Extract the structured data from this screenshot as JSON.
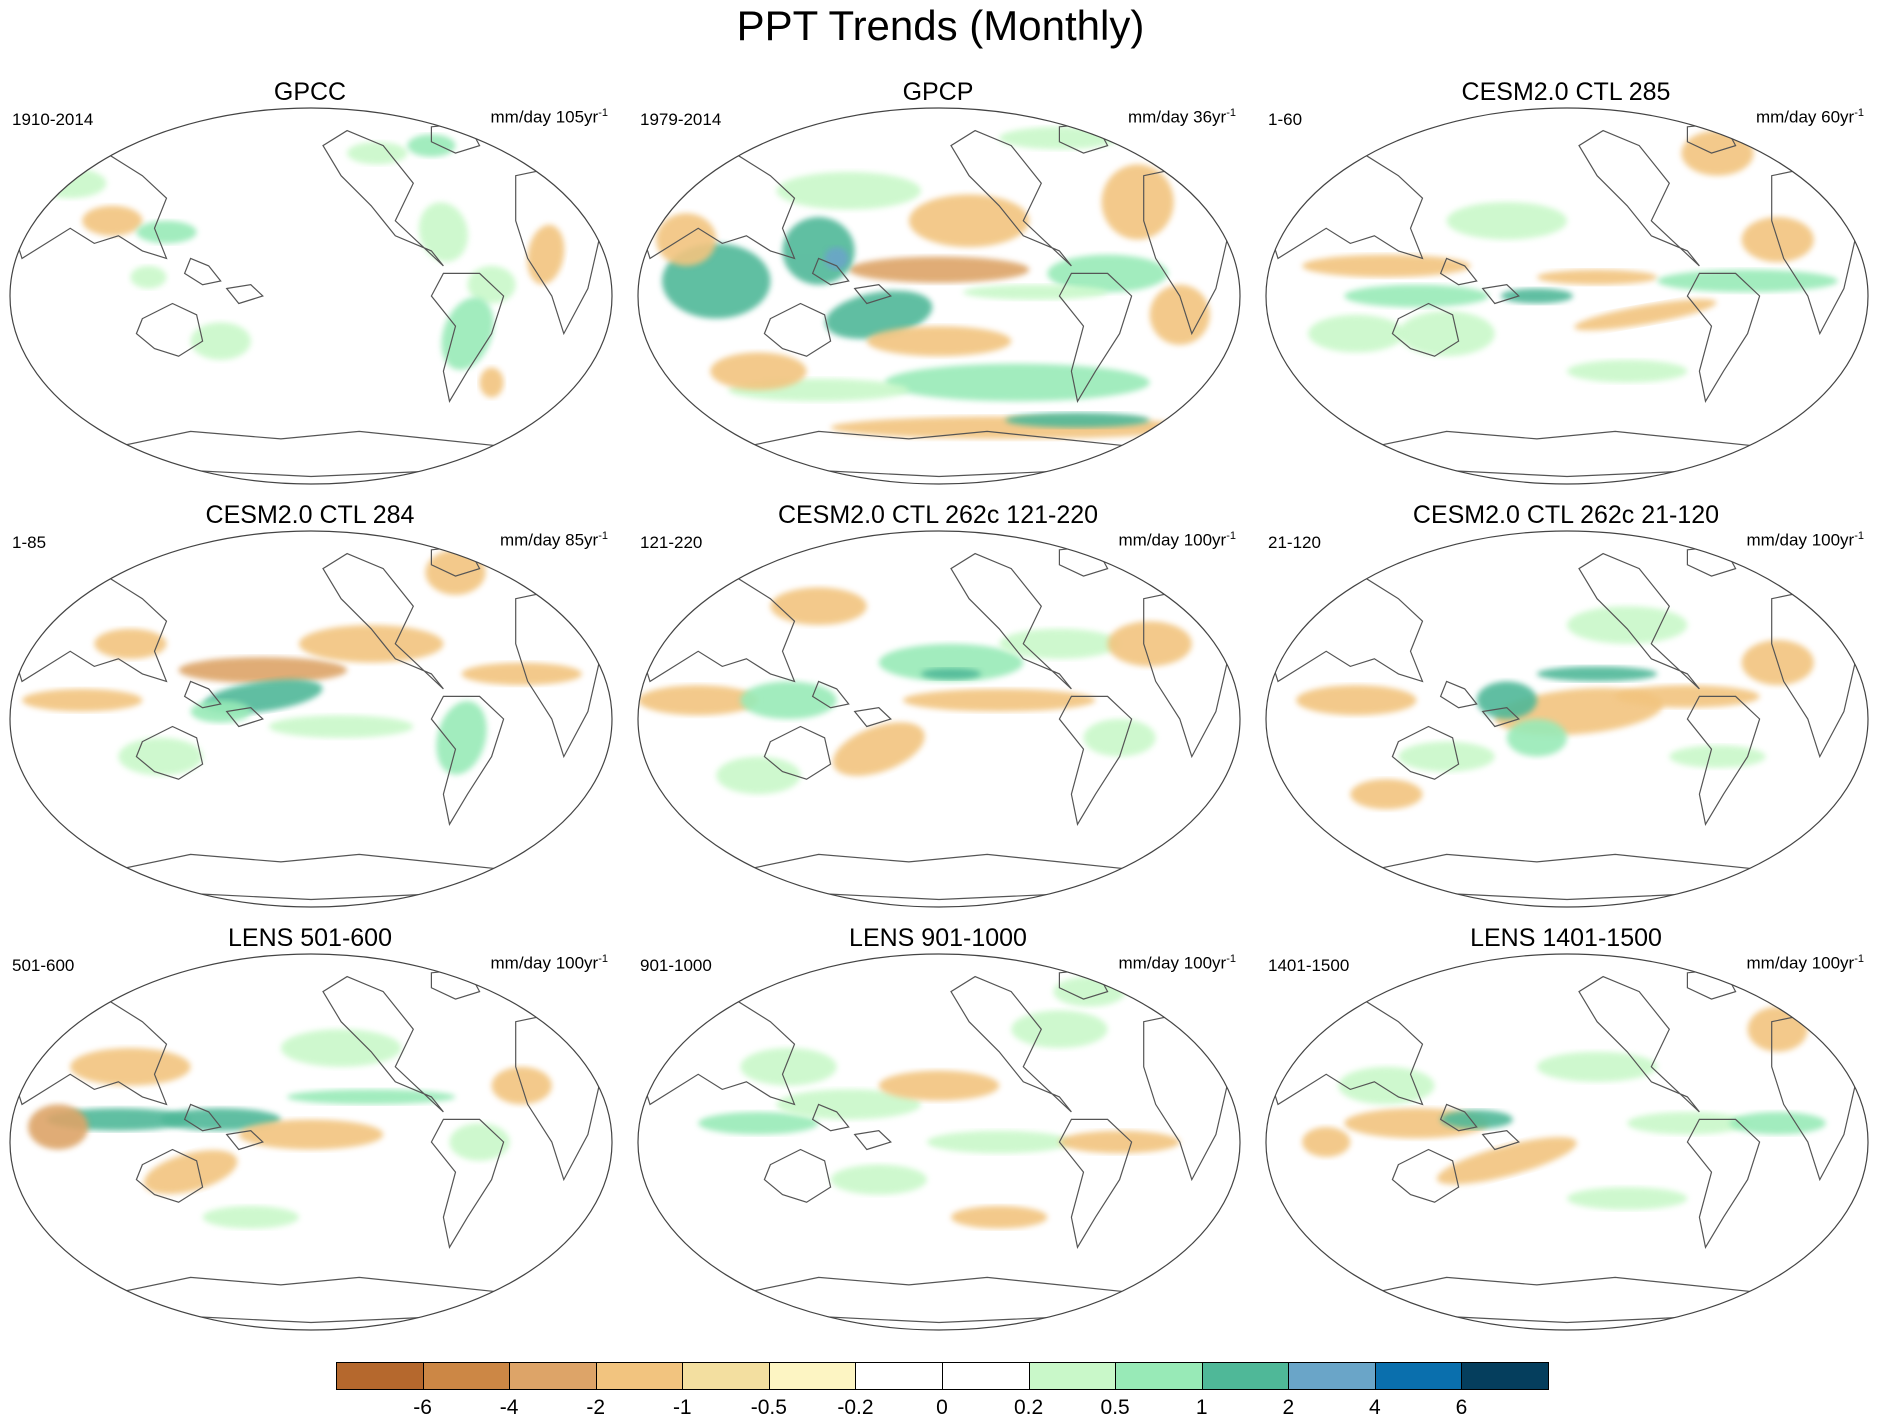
{
  "title": "PPT Trends (Monthly)",
  "panels": [
    {
      "title": "GPCC",
      "period": "1910-2014",
      "units": "mm/day 105yr",
      "units_exp": "-1",
      "pattern": "gpcc"
    },
    {
      "title": "GPCP",
      "period": "1979-2014",
      "units": "mm/day 36yr",
      "units_exp": "-1",
      "pattern": "gpcp"
    },
    {
      "title": "CESM2.0 CTL 285",
      "period": "1-60",
      "units": "mm/day 60yr",
      "units_exp": "-1",
      "pattern": "model1"
    },
    {
      "title": "CESM2.0 CTL 284",
      "period": "1-85",
      "units": "mm/day 85yr",
      "units_exp": "-1",
      "pattern": "model2"
    },
    {
      "title": "CESM2.0 CTL 262c 121-220",
      "period": "121-220",
      "units": "mm/day 100yr",
      "units_exp": "-1",
      "pattern": "model3"
    },
    {
      "title": "CESM2.0 CTL 262c 21-120",
      "period": "21-120",
      "units": "mm/day 100yr",
      "units_exp": "-1",
      "pattern": "model4"
    },
    {
      "title": "LENS 501-600",
      "period": "501-600",
      "units": "mm/day 100yr",
      "units_exp": "-1",
      "pattern": "lens1"
    },
    {
      "title": "LENS 901-1000",
      "period": "901-1000",
      "units": "mm/day 100yr",
      "units_exp": "-1",
      "pattern": "lens2"
    },
    {
      "title": "LENS 1401-1500",
      "period": "1401-1500",
      "units": "mm/day 100yr",
      "units_exp": "-1",
      "pattern": "lens3"
    }
  ],
  "colorbar": {
    "colors": [
      "#b5682d",
      "#cc8745",
      "#dda468",
      "#f2c47f",
      "#f3dfa0",
      "#fdf5c3",
      "#ffffff",
      "#ffffff",
      "#c9f8c9",
      "#98eab7",
      "#4fb898",
      "#6aa5c8",
      "#0a6fad",
      "#053e5d"
    ],
    "labels": [
      "-6",
      "-4",
      "-2",
      "-1",
      "-0.5",
      "-0.2",
      "0",
      "0.2",
      "0.5",
      "1",
      "2",
      "4",
      "6"
    ]
  }
}
